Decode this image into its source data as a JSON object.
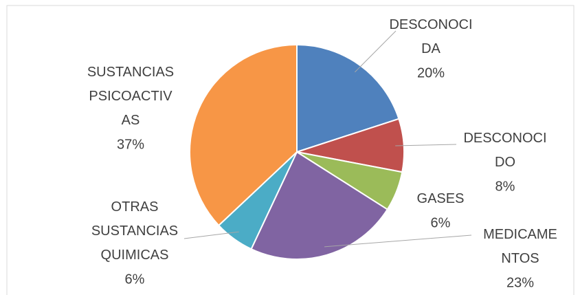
{
  "chart_data": {
    "type": "pie",
    "categories": [
      "DESCONOCIDA",
      "DESCONOCIDO",
      "GASES",
      "MEDICAMENTOS",
      "OTRAS SUSTANCIAS QUIMICAS",
      "SUSTANCIAS PSICOACTIVAS"
    ],
    "values": [
      20,
      8,
      6,
      23,
      6,
      37
    ],
    "value_labels": [
      "20%",
      "8%",
      "6%",
      "23%",
      "6%",
      "37%"
    ],
    "colors": [
      "#4f81bd",
      "#c0504d",
      "#9bbb59",
      "#8064a2",
      "#4bacc6",
      "#f79646"
    ]
  }
}
